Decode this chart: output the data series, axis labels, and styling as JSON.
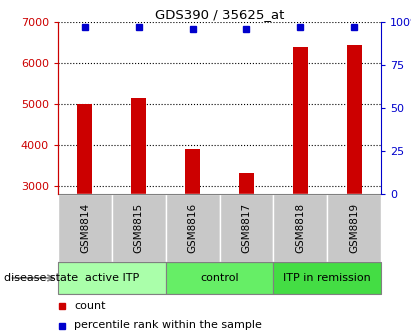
{
  "title": "GDS390 / 35625_at",
  "samples": [
    "GSM8814",
    "GSM8815",
    "GSM8816",
    "GSM8817",
    "GSM8818",
    "GSM8819"
  ],
  "counts": [
    5000,
    5150,
    3900,
    3320,
    6400,
    6450
  ],
  "percentile_ranks": [
    97,
    97,
    96,
    96,
    97,
    97
  ],
  "ylim_left": [
    2800,
    7000
  ],
  "ylim_right": [
    0,
    100
  ],
  "yticks_left": [
    3000,
    4000,
    5000,
    6000,
    7000
  ],
  "yticks_right": [
    0,
    25,
    50,
    75,
    100
  ],
  "bar_color": "#cc0000",
  "dot_color": "#0000cc",
  "sample_box_color": "#c8c8c8",
  "disease_groups": [
    {
      "label": "active ITP",
      "samples": [
        0,
        1
      ],
      "color": "#aaffaa"
    },
    {
      "label": "control",
      "samples": [
        2,
        3
      ],
      "color": "#66ee66"
    },
    {
      "label": "ITP in remission",
      "samples": [
        4,
        5
      ],
      "color": "#44dd44"
    }
  ],
  "disease_state_label": "disease state",
  "legend_count_label": "count",
  "legend_percentile_label": "percentile rank within the sample",
  "bar_width": 0.28
}
